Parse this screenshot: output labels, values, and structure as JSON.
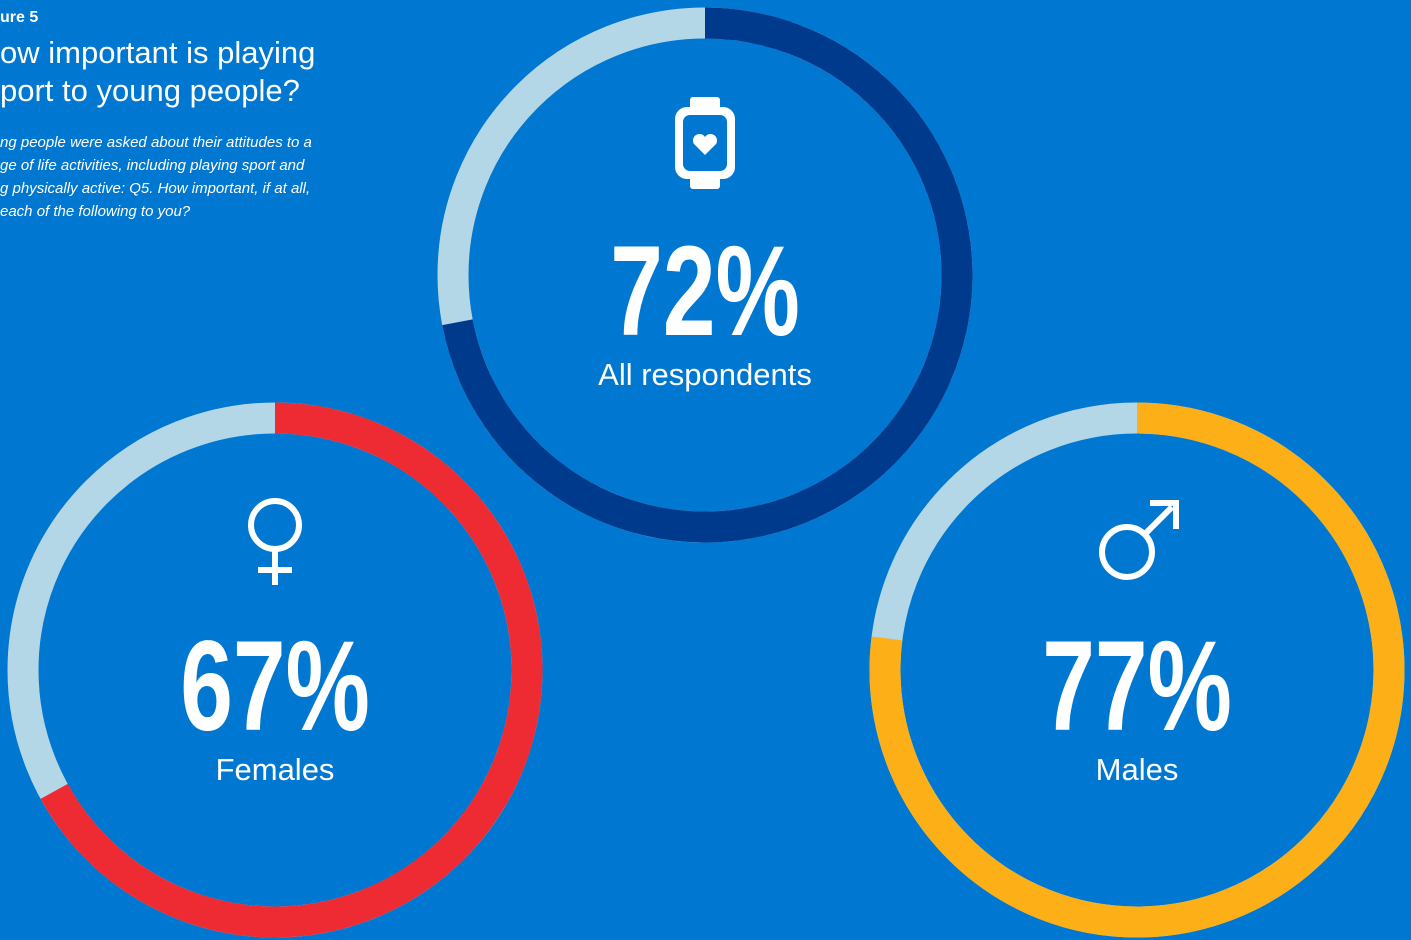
{
  "header": {
    "figure": "ure 5",
    "title_lines": [
      "ow important is playing",
      "port to young people?"
    ],
    "description_lines": [
      "ng people were asked about their attitudes to a",
      "ge of life activities, including playing sport and",
      "g physically active: Q5. How important, if at all,",
      "each of the following to you?"
    ]
  },
  "chart_data": [
    {
      "type": "donut",
      "name": "All respondents",
      "values": [
        72
      ],
      "value_labels": [
        "72%"
      ],
      "color": "#003a8c",
      "track_color": "#b3d7e6"
    },
    {
      "type": "donut",
      "name": "Females",
      "values": [
        67
      ],
      "value_labels": [
        "67%"
      ],
      "color": "#ee2a33",
      "track_color": "#b3d7e6"
    },
    {
      "type": "donut",
      "name": "Males",
      "values": [
        77
      ],
      "value_labels": [
        "77%"
      ],
      "color": "#fcaf17",
      "track_color": "#b3d7e6"
    }
  ]
}
